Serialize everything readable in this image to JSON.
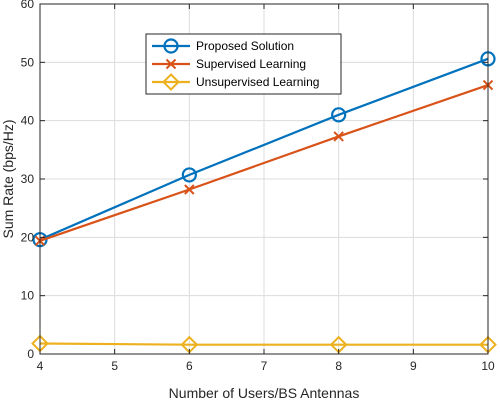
{
  "chart_data": {
    "type": "line",
    "xlabel": "Number of Users/BS Antennas",
    "ylabel": "Sum Rate (bps/Hz)",
    "xlim": [
      4,
      10
    ],
    "ylim": [
      0,
      60
    ],
    "xticks": [
      4,
      5,
      6,
      7,
      8,
      9,
      10
    ],
    "yticks": [
      0,
      10,
      20,
      30,
      40,
      50,
      60
    ],
    "grid": true,
    "legend_position": "top-center",
    "x": [
      4,
      6,
      8,
      10
    ],
    "series": [
      {
        "name": "Proposed Solution",
        "values": [
          19.6,
          30.7,
          41.0,
          50.6
        ],
        "color": "#0072BD",
        "marker": "circle"
      },
      {
        "name": "Supervised Learning",
        "values": [
          19.4,
          28.2,
          37.3,
          46.1
        ],
        "color": "#D95319",
        "marker": "x"
      },
      {
        "name": "Unsupervised Learning",
        "values": [
          1.8,
          1.6,
          1.6,
          1.6
        ],
        "color": "#EDB120",
        "marker": "diamond"
      }
    ]
  }
}
